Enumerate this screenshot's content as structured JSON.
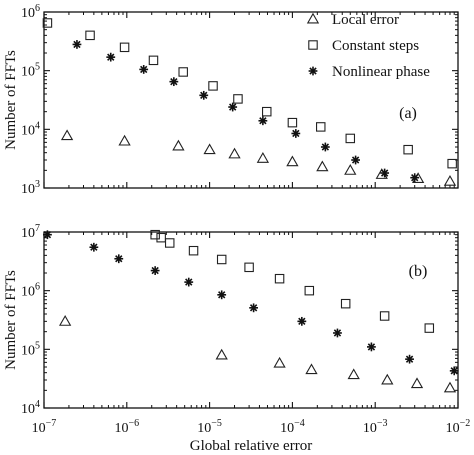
{
  "chart_data": [
    {
      "panel_label": "(a)",
      "type": "scatter",
      "xscale": "log",
      "yscale": "log",
      "xlim": [
        1e-07,
        0.01
      ],
      "ylim": [
        1000,
        1000000
      ],
      "xlabel": "",
      "ylabel": "Number of FFTs",
      "x_ticks": [
        {
          "value": 1e-07,
          "base": "10",
          "exp": "−7"
        },
        {
          "value": 1e-06,
          "base": "10",
          "exp": "−6"
        },
        {
          "value": 1e-05,
          "base": "10",
          "exp": "−5"
        },
        {
          "value": 0.0001,
          "base": "10",
          "exp": "−4"
        },
        {
          "value": 0.001,
          "base": "10",
          "exp": "−3"
        },
        {
          "value": 0.01,
          "base": "10",
          "exp": "−2"
        }
      ],
      "y_ticks": [
        {
          "value": 1000,
          "base": "10",
          "exp": "3"
        },
        {
          "value": 10000,
          "base": "10",
          "exp": "4"
        },
        {
          "value": 100000,
          "base": "10",
          "exp": "5"
        },
        {
          "value": 1000000,
          "base": "10",
          "exp": "6"
        }
      ],
      "legend": "top-right",
      "series": [
        {
          "name": "Local error",
          "marker": "triangle",
          "points": [
            [
              1.9e-07,
              7800
            ],
            [
              9.4e-07,
              6300
            ],
            [
              4.2e-06,
              5200
            ],
            [
              1e-05,
              4500
            ],
            [
              2e-05,
              3800
            ],
            [
              4.4e-05,
              3200
            ],
            [
              0.0001,
              2800
            ],
            [
              0.00023,
              2300
            ],
            [
              0.0005,
              2000
            ],
            [
              0.0012,
              1700
            ],
            [
              0.0033,
              1450
            ],
            [
              0.008,
              1300
            ]
          ]
        },
        {
          "name": "Constant steps",
          "marker": "square",
          "points": [
            [
              1.1e-07,
              650000
            ],
            [
              3.6e-07,
              400000
            ],
            [
              9.4e-07,
              250000
            ],
            [
              2.1e-06,
              150000
            ],
            [
              4.8e-06,
              95000
            ],
            [
              1.1e-05,
              55000
            ],
            [
              2.2e-05,
              33000
            ],
            [
              4.9e-05,
              20000
            ],
            [
              0.0001,
              13000
            ],
            [
              0.00022,
              11000
            ],
            [
              0.0005,
              7000
            ],
            [
              0.0025,
              4500
            ],
            [
              0.0085,
              2600
            ]
          ]
        },
        {
          "name": "Nonlinear phase",
          "marker": "star",
          "points": [
            [
              2.5e-07,
              280000
            ],
            [
              6.4e-07,
              170000
            ],
            [
              1.6e-06,
              105000
            ],
            [
              3.7e-06,
              65000
            ],
            [
              8.5e-06,
              38000
            ],
            [
              1.9e-05,
              24000
            ],
            [
              4.4e-05,
              14000
            ],
            [
              0.00011,
              8500
            ],
            [
              0.00025,
              5000
            ],
            [
              0.00058,
              3000
            ],
            [
              0.0013,
              1800
            ],
            [
              0.003,
              1500
            ]
          ]
        }
      ]
    },
    {
      "panel_label": "(b)",
      "type": "scatter",
      "xscale": "log",
      "yscale": "log",
      "xlim": [
        1e-07,
        0.01
      ],
      "ylim": [
        10000,
        10000000
      ],
      "xlabel": "Global relative error",
      "ylabel": "Number of FFTs",
      "x_ticks": [
        {
          "value": 1e-07,
          "base": "10",
          "exp": "−7"
        },
        {
          "value": 1e-06,
          "base": "10",
          "exp": "−6"
        },
        {
          "value": 1e-05,
          "base": "10",
          "exp": "−5"
        },
        {
          "value": 0.0001,
          "base": "10",
          "exp": "−4"
        },
        {
          "value": 0.001,
          "base": "10",
          "exp": "−3"
        },
        {
          "value": 0.01,
          "base": "10",
          "exp": "−2"
        }
      ],
      "y_ticks": [
        {
          "value": 10000,
          "base": "10",
          "exp": "4"
        },
        {
          "value": 100000,
          "base": "10",
          "exp": "5"
        },
        {
          "value": 1000000,
          "base": "10",
          "exp": "6"
        },
        {
          "value": 10000000,
          "base": "10",
          "exp": "7"
        }
      ],
      "series": [
        {
          "name": "Local error",
          "marker": "triangle",
          "points": [
            [
              1.8e-07,
              300000
            ],
            [
              1.4e-05,
              80000
            ],
            [
              7e-05,
              58000
            ],
            [
              0.00017,
              45000
            ],
            [
              0.00055,
              37000
            ],
            [
              0.0014,
              30000
            ],
            [
              0.0032,
              26000
            ],
            [
              0.008,
              22000
            ]
          ]
        },
        {
          "name": "Constant steps",
          "marker": "square",
          "points": [
            [
              2.2e-06,
              9000000
            ],
            [
              2.6e-06,
              8000000
            ],
            [
              3.3e-06,
              6500000
            ],
            [
              6.4e-06,
              4800000
            ],
            [
              1.4e-05,
              3400000
            ],
            [
              3e-05,
              2500000
            ],
            [
              7e-05,
              1600000
            ],
            [
              0.00016,
              1000000
            ],
            [
              0.00044,
              600000
            ],
            [
              0.0013,
              370000
            ],
            [
              0.0045,
              230000
            ]
          ]
        },
        {
          "name": "Nonlinear phase",
          "marker": "star",
          "points": [
            [
              1.1e-07,
              9000000
            ],
            [
              4e-07,
              5500000
            ],
            [
              8e-07,
              3500000
            ],
            [
              2.2e-06,
              2200000
            ],
            [
              5.6e-06,
              1400000
            ],
            [
              1.4e-05,
              850000
            ],
            [
              3.4e-05,
              510000
            ],
            [
              0.00013,
              300000
            ],
            [
              0.00035,
              190000
            ],
            [
              0.0009,
              110000
            ],
            [
              0.0026,
              68000
            ],
            [
              0.009,
              43000
            ]
          ]
        }
      ]
    }
  ]
}
